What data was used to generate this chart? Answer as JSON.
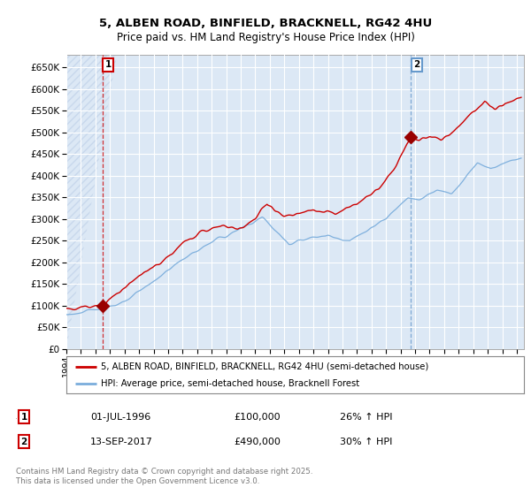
{
  "title_line1": "5, ALBEN ROAD, BINFIELD, BRACKNELL, RG42 4HU",
  "title_line2": "Price paid vs. HM Land Registry's House Price Index (HPI)",
  "fig_bg": "#ffffff",
  "plot_bg": "#dce8f5",
  "grid_color": "#ffffff",
  "hatch_color": "#c8d8ec",
  "ylim": [
    0,
    680000
  ],
  "yticks": [
    0,
    50000,
    100000,
    150000,
    200000,
    250000,
    300000,
    350000,
    400000,
    450000,
    500000,
    550000,
    600000,
    650000
  ],
  "xmin": 1994.0,
  "xmax": 2025.5,
  "sale1_x": 1996.5,
  "sale1_y": 100000,
  "sale2_x": 2017.72,
  "sale2_y": 490000,
  "vline1_color": "#cc0000",
  "vline2_color": "#6699cc",
  "red_line_color": "#cc0000",
  "blue_line_color": "#7aaddc",
  "marker_color": "#990000",
  "legend_label_red": "5, ALBEN ROAD, BINFIELD, BRACKNELL, RG42 4HU (semi-detached house)",
  "legend_label_blue": "HPI: Average price, semi-detached house, Bracknell Forest",
  "annotation1_date": "01-JUL-1996",
  "annotation1_price": "£100,000",
  "annotation1_hpi": "26% ↑ HPI",
  "annotation2_date": "13-SEP-2017",
  "annotation2_price": "£490,000",
  "annotation2_hpi": "30% ↑ HPI",
  "footer": "Contains HM Land Registry data © Crown copyright and database right 2025.\nThis data is licensed under the Open Government Licence v3.0."
}
